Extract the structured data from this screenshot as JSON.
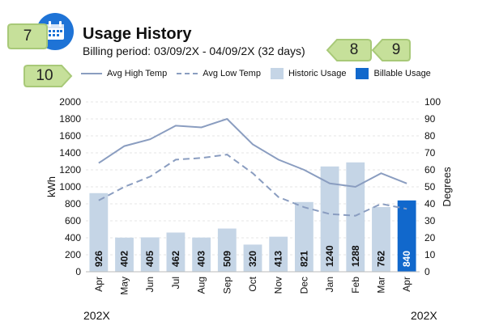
{
  "header": {
    "title": "Usage History",
    "billing_period": "Billing period: 03/09/2X - 04/09/2X (32 days)",
    "calendar_icon": "calendar-icon"
  },
  "callouts": [
    "7",
    "8",
    "9",
    "10"
  ],
  "legend": {
    "high": "Avg High Temp",
    "low": "Avg Low Temp",
    "historic": "Historic Usage",
    "billable": "Billable Usage"
  },
  "year_labels": {
    "left": "202X",
    "right": "202X"
  },
  "colors": {
    "historic": "#c5d5e6",
    "billable": "#1168cc",
    "temp_line": "#8a9dc0",
    "icon": "#1e73d6",
    "callout_fill": "#c6e09a",
    "callout_stroke": "#a8c978"
  },
  "chart_data": {
    "type": "bar",
    "categories": [
      "Apr",
      "May",
      "Jun",
      "Jul",
      "Aug",
      "Sep",
      "Oct",
      "Nov",
      "Dec",
      "Jan",
      "Feb",
      "Mar",
      "Apr"
    ],
    "usage": [
      926,
      402,
      405,
      462,
      403,
      509,
      320,
      413,
      821,
      1240,
      1288,
      762,
      840
    ],
    "billable_index": 12,
    "high_temp": [
      64,
      74,
      78,
      86,
      85,
      90,
      75,
      66,
      60,
      52,
      50,
      58,
      52
    ],
    "low_temp": [
      42,
      50,
      56,
      66,
      67,
      69,
      58,
      44,
      38,
      34,
      33,
      40,
      37
    ],
    "ylabel_left": "kWh",
    "ylabel_right": "Degrees",
    "ylim_left": [
      0,
      2000
    ],
    "ylim_right": [
      0,
      100
    ],
    "yticks_left": [
      "0",
      "200",
      "400",
      "600",
      "800",
      "1000",
      "1200",
      "1400",
      "1600",
      "1800",
      "2000"
    ],
    "yticks_right": [
      "0",
      "10",
      "20",
      "30",
      "40",
      "50",
      "60",
      "70",
      "80",
      "90",
      "100"
    ],
    "grid": true
  }
}
